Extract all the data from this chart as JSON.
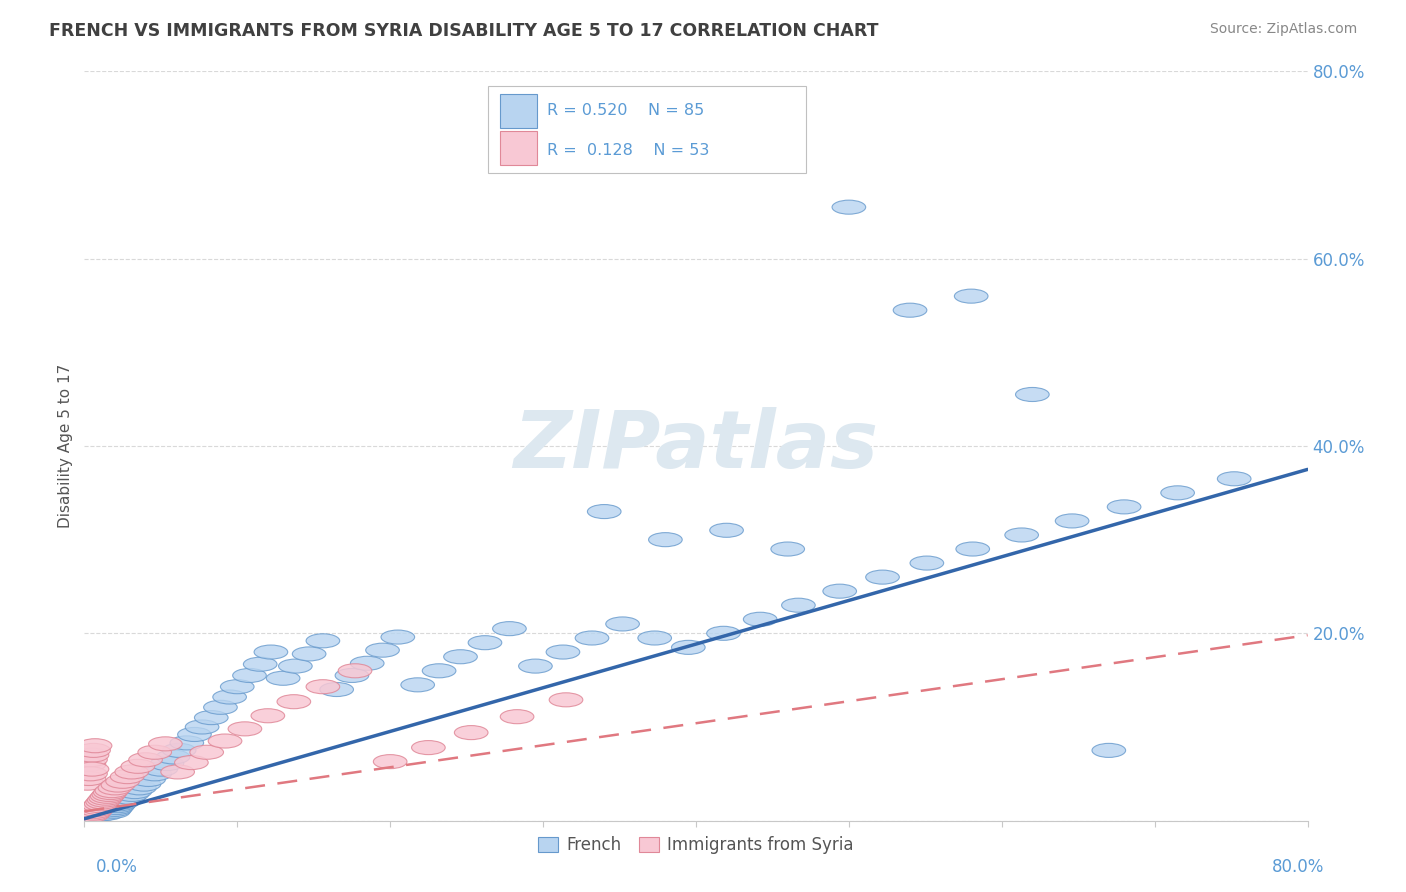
{
  "title": "FRENCH VS IMMIGRANTS FROM SYRIA DISABILITY AGE 5 TO 17 CORRELATION CHART",
  "source": "Source: ZipAtlas.com",
  "ylabel": "Disability Age 5 to 17",
  "xlim": [
    0.0,
    0.8
  ],
  "ylim": [
    0.0,
    0.8
  ],
  "blue_color": "#b8d4f0",
  "blue_edge_color": "#6699cc",
  "blue_line_color": "#3366aa",
  "pink_color": "#f8c8d4",
  "pink_edge_color": "#e08898",
  "pink_line_color": "#e07880",
  "title_color": "#404040",
  "axis_label_color": "#5b9bd5",
  "watermark_color": "#dde8f0",
  "background_color": "#ffffff",
  "grid_color": "#d0d0d0",
  "french_x": [
    0.003,
    0.004,
    0.005,
    0.006,
    0.007,
    0.008,
    0.009,
    0.01,
    0.011,
    0.012,
    0.013,
    0.014,
    0.015,
    0.016,
    0.017,
    0.018,
    0.019,
    0.02,
    0.021,
    0.022,
    0.023,
    0.025,
    0.027,
    0.029,
    0.031,
    0.033,
    0.036,
    0.039,
    0.042,
    0.046,
    0.05,
    0.054,
    0.058,
    0.062,
    0.067,
    0.072,
    0.077,
    0.083,
    0.089,
    0.095,
    0.1,
    0.108,
    0.115,
    0.122,
    0.13,
    0.138,
    0.147,
    0.156,
    0.165,
    0.175,
    0.185,
    0.195,
    0.205,
    0.218,
    0.232,
    0.246,
    0.262,
    0.278,
    0.295,
    0.313,
    0.332,
    0.352,
    0.373,
    0.395,
    0.418,
    0.442,
    0.467,
    0.494,
    0.522,
    0.551,
    0.581,
    0.613,
    0.646,
    0.68,
    0.715,
    0.752,
    0.34,
    0.38,
    0.42,
    0.46,
    0.5,
    0.54,
    0.58,
    0.62,
    0.67
  ],
  "french_y": [
    0.005,
    0.008,
    0.01,
    0.012,
    0.006,
    0.009,
    0.011,
    0.013,
    0.007,
    0.01,
    0.012,
    0.014,
    0.008,
    0.011,
    0.013,
    0.015,
    0.01,
    0.012,
    0.014,
    0.016,
    0.018,
    0.02,
    0.022,
    0.025,
    0.028,
    0.031,
    0.035,
    0.039,
    0.044,
    0.05,
    0.055,
    0.061,
    0.068,
    0.075,
    0.083,
    0.092,
    0.1,
    0.11,
    0.121,
    0.132,
    0.143,
    0.155,
    0.167,
    0.18,
    0.152,
    0.165,
    0.178,
    0.192,
    0.14,
    0.155,
    0.168,
    0.182,
    0.196,
    0.145,
    0.16,
    0.175,
    0.19,
    0.205,
    0.165,
    0.18,
    0.195,
    0.21,
    0.195,
    0.185,
    0.2,
    0.215,
    0.23,
    0.245,
    0.26,
    0.275,
    0.29,
    0.305,
    0.32,
    0.335,
    0.35,
    0.365,
    0.33,
    0.3,
    0.31,
    0.29,
    0.655,
    0.545,
    0.56,
    0.455,
    0.075
  ],
  "syria_x": [
    0.001,
    0.002,
    0.003,
    0.004,
    0.005,
    0.006,
    0.007,
    0.008,
    0.003,
    0.004,
    0.005,
    0.006,
    0.007,
    0.002,
    0.003,
    0.004,
    0.005,
    0.006,
    0.007,
    0.008,
    0.009,
    0.01,
    0.011,
    0.012,
    0.013,
    0.014,
    0.015,
    0.016,
    0.017,
    0.018,
    0.02,
    0.022,
    0.025,
    0.028,
    0.031,
    0.035,
    0.04,
    0.046,
    0.053,
    0.061,
    0.07,
    0.08,
    0.092,
    0.105,
    0.12,
    0.137,
    0.156,
    0.177,
    0.2,
    0.225,
    0.253,
    0.283,
    0.315
  ],
  "syria_y": [
    0.005,
    0.008,
    0.01,
    0.012,
    0.006,
    0.009,
    0.011,
    0.013,
    0.06,
    0.065,
    0.07,
    0.075,
    0.08,
    0.04,
    0.045,
    0.05,
    0.055,
    0.008,
    0.01,
    0.012,
    0.014,
    0.016,
    0.018,
    0.02,
    0.022,
    0.024,
    0.026,
    0.028,
    0.03,
    0.032,
    0.035,
    0.038,
    0.042,
    0.047,
    0.052,
    0.058,
    0.065,
    0.073,
    0.082,
    0.052,
    0.062,
    0.073,
    0.085,
    0.098,
    0.112,
    0.127,
    0.143,
    0.16,
    0.063,
    0.078,
    0.094,
    0.111,
    0.129
  ],
  "french_line_x0": 0.0,
  "french_line_y0": 0.002,
  "french_line_x1": 0.8,
  "french_line_y1": 0.375,
  "syria_line_x0": 0.0,
  "syria_line_y0": 0.01,
  "syria_line_x1": 0.8,
  "syria_line_y1": 0.198,
  "watermark_text": "ZIPatlas"
}
